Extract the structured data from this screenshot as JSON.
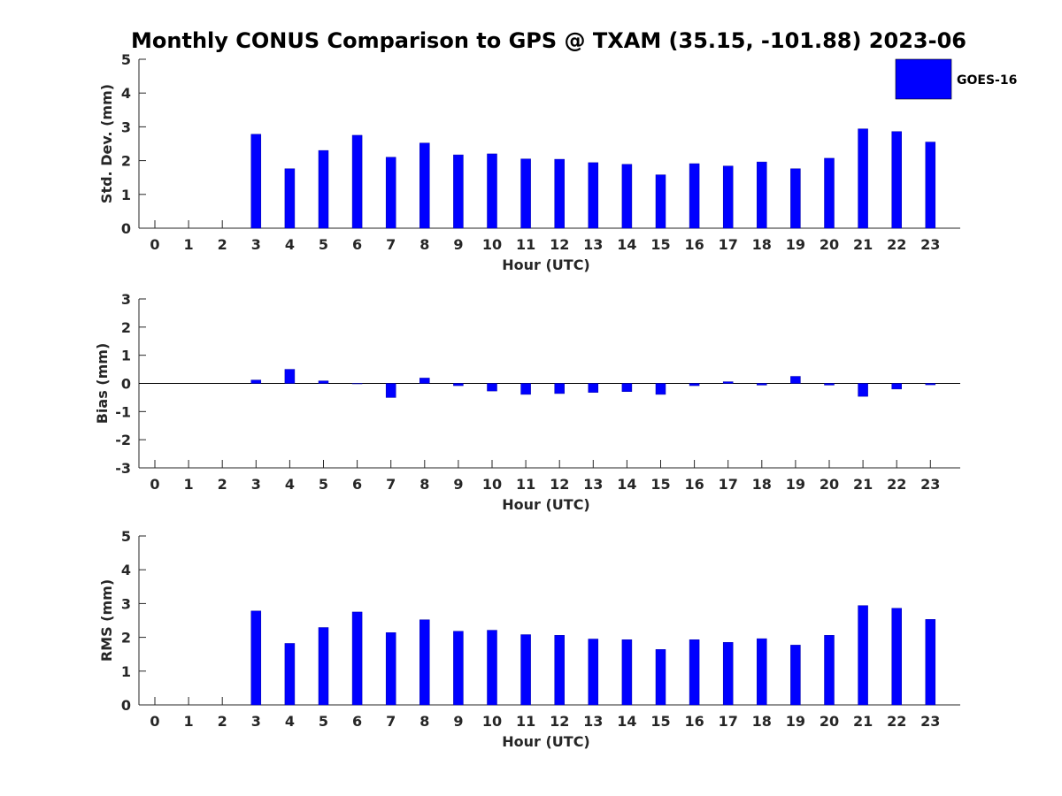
{
  "chart_data": {
    "type": "bar",
    "title": "Monthly CONUS Comparison to GPS @ TXAM (35.15, -101.88) 2023-06",
    "legend": {
      "entries": [
        "GOES-16"
      ],
      "position": "top-right",
      "color": "#0000ff"
    },
    "series_color": "#0000ff",
    "categories": [
      "0",
      "1",
      "2",
      "3",
      "4",
      "5",
      "6",
      "7",
      "8",
      "9",
      "10",
      "11",
      "12",
      "13",
      "14",
      "15",
      "16",
      "17",
      "18",
      "19",
      "20",
      "21",
      "22",
      "23"
    ],
    "panels": [
      {
        "id": "std",
        "ylabel": "Std. Dev. (mm)",
        "xlabel": "Hour (UTC)",
        "ylim": [
          0,
          5
        ],
        "yticks": [
          "0",
          "1",
          "2",
          "3",
          "4",
          "5"
        ],
        "values": [
          null,
          null,
          null,
          2.78,
          1.76,
          2.3,
          2.75,
          2.1,
          2.52,
          2.17,
          2.2,
          2.05,
          2.04,
          1.94,
          1.89,
          1.58,
          1.91,
          1.84,
          1.96,
          1.76,
          2.07,
          2.94,
          2.86,
          2.55
        ]
      },
      {
        "id": "bias",
        "ylabel": "Bias (mm)",
        "xlabel": "Hour (UTC)",
        "ylim": [
          -3,
          3
        ],
        "yticks": [
          "-3",
          "-2",
          "-1",
          "0",
          "1",
          "2",
          "3"
        ],
        "values": [
          null,
          null,
          null,
          0.12,
          0.5,
          0.09,
          0.0,
          -0.5,
          0.19,
          -0.08,
          -0.27,
          -0.39,
          -0.36,
          -0.32,
          -0.29,
          -0.39,
          -0.08,
          0.06,
          -0.06,
          0.25,
          -0.06,
          -0.46,
          -0.2,
          -0.05
        ]
      },
      {
        "id": "rms",
        "ylabel": "RMS (mm)",
        "xlabel": "Hour (UTC)",
        "ylim": [
          0,
          5
        ],
        "yticks": [
          "0",
          "1",
          "2",
          "3",
          "4",
          "5"
        ],
        "values": [
          null,
          null,
          null,
          2.78,
          1.82,
          2.29,
          2.75,
          2.14,
          2.52,
          2.18,
          2.21,
          2.08,
          2.06,
          1.95,
          1.93,
          1.64,
          1.93,
          1.85,
          1.96,
          1.77,
          2.06,
          2.94,
          2.86,
          2.53
        ]
      }
    ]
  }
}
